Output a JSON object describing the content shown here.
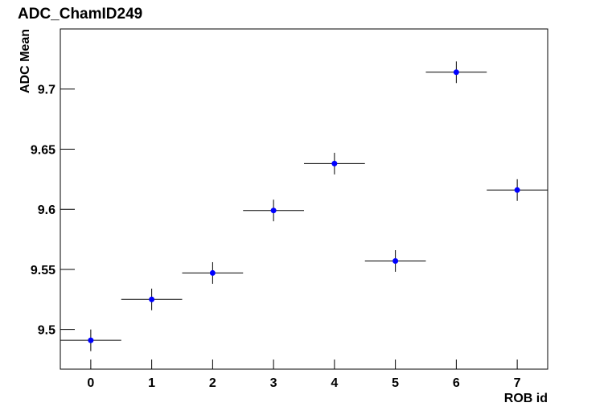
{
  "chart_data": {
    "type": "errorbar",
    "title": "ADC_ChamID249",
    "x_label": "ROB id",
    "y_label": "ADC Mean",
    "series": [
      {
        "color": "#0000ff",
        "x": [
          0,
          1,
          2,
          3,
          4,
          5,
          6,
          7
        ],
        "values": [
          9.491,
          9.525,
          9.547,
          9.599,
          9.638,
          9.557,
          9.714,
          9.616
        ],
        "y_errors": [
          0.009,
          0.009,
          0.009,
          0.009,
          0.009,
          0.009,
          0.009,
          0.009
        ],
        "x_errors": [
          0.5,
          0.5,
          0.5,
          0.5,
          0.5,
          0.5,
          0.5,
          0.5
        ]
      }
    ],
    "xlim": [
      -0.5,
      7.5
    ],
    "xticks": [
      0,
      1,
      2,
      3,
      4,
      5,
      6,
      7
    ],
    "ylim": [
      9.467,
      9.75
    ],
    "yticks": [
      9.5,
      9.55,
      9.6,
      9.65,
      9.7
    ]
  }
}
